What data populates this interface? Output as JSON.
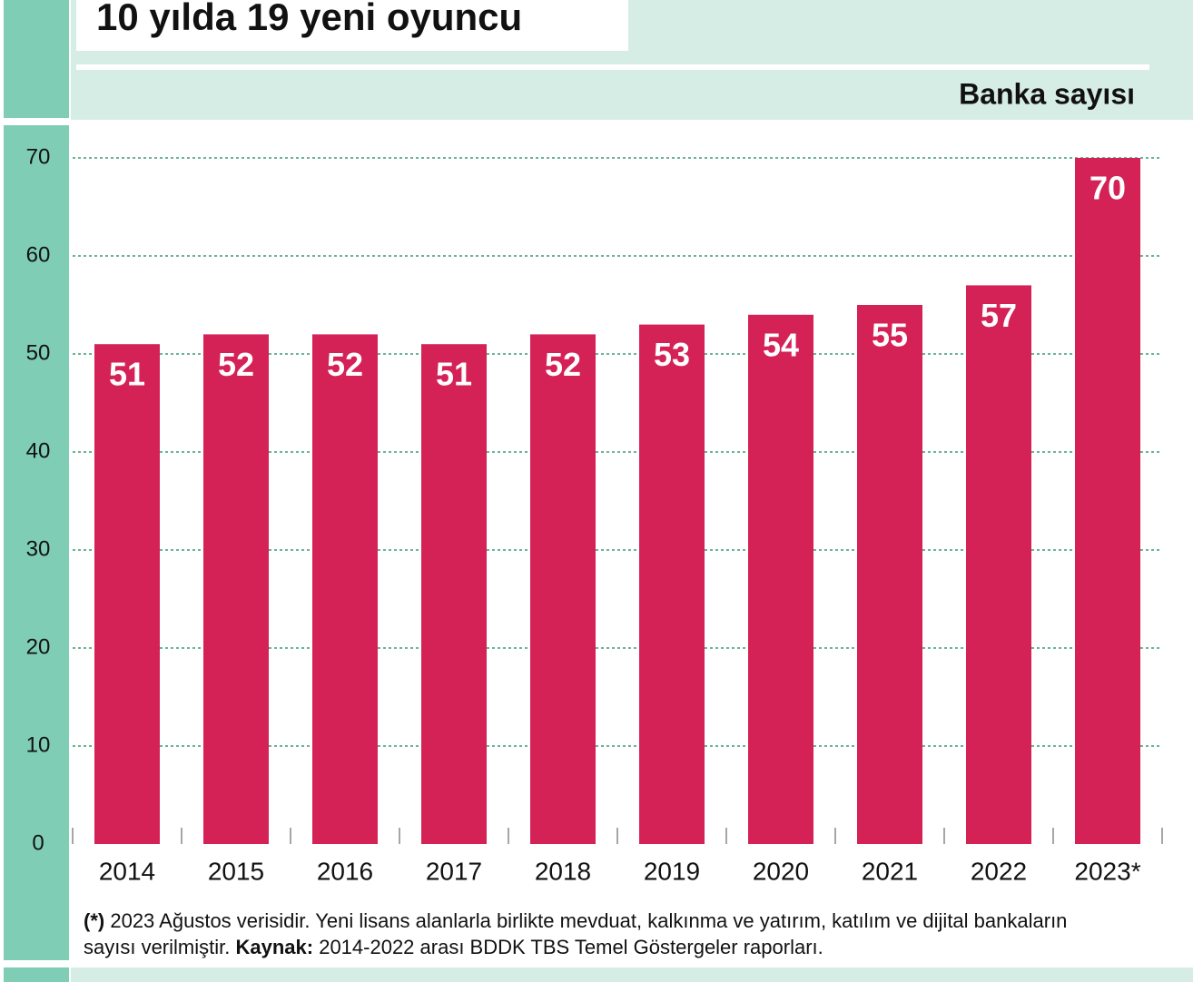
{
  "chart_data": {
    "type": "bar",
    "title": "10 yılda 19 yeni oyuncu",
    "subtitle": "Banka sayısı",
    "categories": [
      "2014",
      "2015",
      "2016",
      "2017",
      "2018",
      "2019",
      "2020",
      "2021",
      "2022",
      "2023*"
    ],
    "values": [
      51,
      52,
      52,
      51,
      52,
      53,
      54,
      55,
      57,
      70
    ],
    "color": "#d42257",
    "ylim": [
      0,
      70
    ],
    "yticks": [
      0,
      10,
      20,
      30,
      40,
      50,
      60,
      70
    ],
    "grid": true,
    "note": {
      "mark": "(*)",
      "text": "2023 Ağustos verisidir. Yeni lisans alanlarla birlikte mevduat, kalkınma ve yatırım, katılım ve dijital bankaların sayısı verilmiştir.",
      "source_label": "Kaynak:",
      "source": "2014-2022 arası BDDK TBS Temel Göstergeler raporları."
    }
  }
}
